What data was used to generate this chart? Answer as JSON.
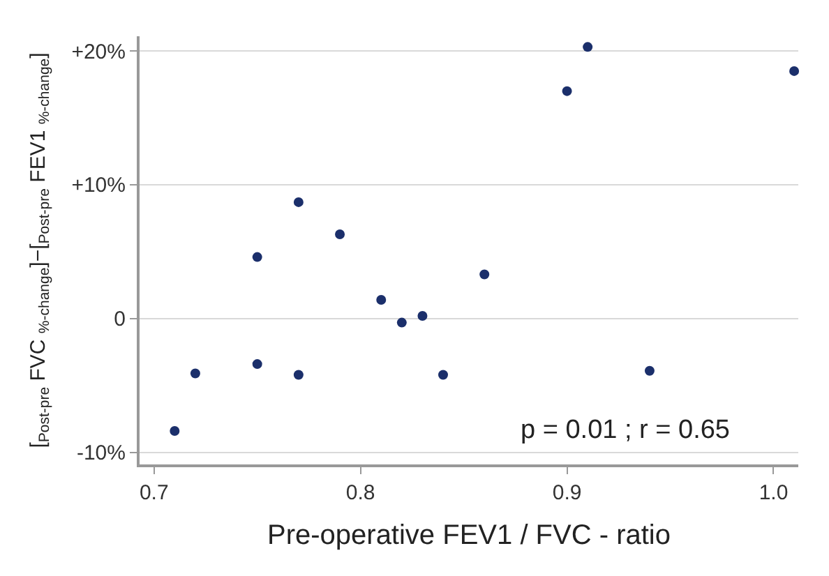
{
  "chart_data": {
    "type": "scatter",
    "xlabel": "Pre-operative FEV1 / FVC - ratio",
    "ylabel": "[$_{Post-pre}$ FVC $_{%-change}$]−[$_{Post-pre}$ FEV1 $_{%-change}$]",
    "x": [
      0.71,
      0.72,
      0.75,
      0.75,
      0.77,
      0.77,
      0.79,
      0.81,
      0.82,
      0.83,
      0.84,
      0.86,
      0.9,
      0.91,
      0.94,
      1.01
    ],
    "series": [
      {
        "color": "#1b2f6b",
        "values": [
          -8.4,
          -4.1,
          4.6,
          -3.4,
          8.7,
          -4.2,
          6.3,
          1.4,
          -0.3,
          0.2,
          -4.2,
          3.3,
          17.0,
          20.3,
          -3.9,
          18.5
        ]
      }
    ],
    "xlim": [
      0.693,
      1.012
    ],
    "xticks": [
      0.7,
      0.8,
      0.9,
      {
        "value": 1,
        "label": "1.0"
      }
    ],
    "ylim": [
      -10.9,
      21.1
    ],
    "yticks": [
      {
        "value": -10,
        "label": "-10%"
      },
      0,
      {
        "value": 10,
        "label": "+10%"
      },
      {
        "value": 20,
        "label": "+20%"
      }
    ],
    "grid": "y",
    "marker": "circle",
    "annotations": [
      "p = 0.01 ; r = 0.65"
    ]
  }
}
